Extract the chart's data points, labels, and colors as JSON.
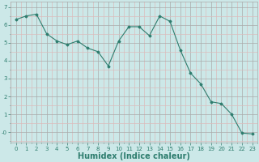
{
  "x": [
    0,
    1,
    2,
    3,
    4,
    5,
    6,
    7,
    8,
    9,
    10,
    11,
    12,
    13,
    14,
    15,
    16,
    17,
    18,
    19,
    20,
    21,
    22,
    23
  ],
  "y": [
    6.3,
    6.5,
    6.6,
    5.5,
    5.1,
    4.9,
    5.1,
    4.7,
    4.5,
    3.7,
    5.1,
    5.9,
    5.9,
    5.4,
    6.5,
    6.2,
    4.6,
    3.3,
    2.7,
    1.7,
    1.6,
    1.0,
    -0.05,
    -0.1
  ],
  "line_color": "#2e7d6e",
  "marker": "D",
  "marker_size": 1.5,
  "bg_color": "#cce8e8",
  "grid_color_major": "#aaaaaa",
  "grid_color_minor": "#dbbcbc",
  "xlabel": "Humidex (Indice chaleur)",
  "xlabel_fontsize": 7,
  "xlabel_fontweight": "bold",
  "xlabel_color": "#2e7d6e",
  "yticks": [
    0,
    1,
    2,
    3,
    4,
    5,
    6,
    7
  ],
  "ytick_labels": [
    "-0",
    "1",
    "2",
    "3",
    "4",
    "5",
    "6",
    "7"
  ],
  "ylim": [
    -0.6,
    7.3
  ],
  "xlim": [
    -0.5,
    23.5
  ],
  "xtick_labels": [
    "0",
    "1",
    "2",
    "3",
    "4",
    "5",
    "6",
    "7",
    "8",
    "9",
    "10",
    "11",
    "12",
    "13",
    "14",
    "15",
    "16",
    "17",
    "18",
    "19",
    "20",
    "21",
    "22",
    "23"
  ],
  "tick_fontsize": 5,
  "tick_color": "#2e7d6e",
  "linewidth": 0.8
}
